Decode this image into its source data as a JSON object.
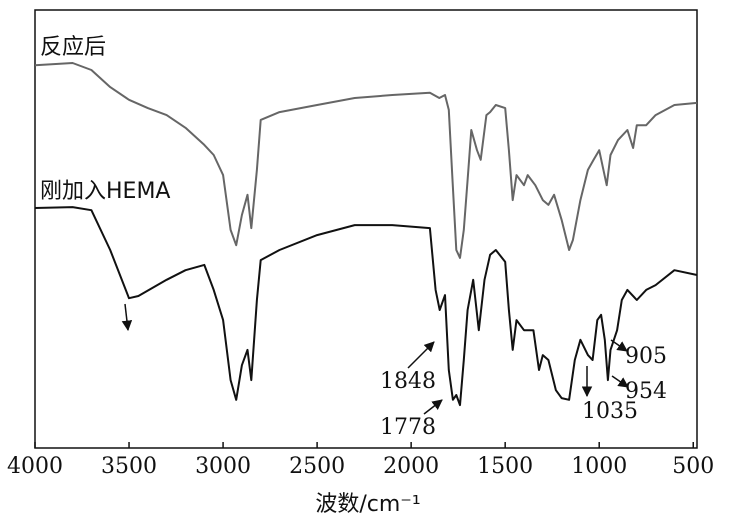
{
  "chart_data": {
    "type": "line",
    "x_label": "波数/cm⁻¹",
    "xlim": [
      4000,
      480
    ],
    "ylim": [
      0,
      100
    ],
    "xticks": [
      4000,
      3500,
      3000,
      2500,
      2000,
      1500,
      1000,
      500
    ],
    "grid": false,
    "series": [
      {
        "name": "反应后",
        "color": "#666666",
        "x": [
          4000,
          3800,
          3700,
          3600,
          3500,
          3400,
          3300,
          3200,
          3100,
          3050,
          3000,
          2960,
          2930,
          2900,
          2870,
          2850,
          2820,
          2800,
          2700,
          2500,
          2300,
          2100,
          1900,
          1850,
          1820,
          1800,
          1780,
          1760,
          1740,
          1720,
          1700,
          1680,
          1650,
          1630,
          1600,
          1580,
          1550,
          1500,
          1480,
          1460,
          1440,
          1400,
          1380,
          1340,
          1300,
          1270,
          1240,
          1200,
          1160,
          1140,
          1100,
          1060,
          1030,
          1000,
          960,
          940,
          900,
          850,
          820,
          800,
          750,
          700,
          600,
          480
        ],
        "values": [
          87.4,
          87.9,
          86.3,
          82.4,
          79.5,
          77.6,
          76.0,
          73.1,
          69.2,
          66.9,
          62.3,
          49.8,
          46.3,
          53.2,
          57.8,
          50.2,
          63.5,
          74.9,
          76.7,
          78.3,
          79.9,
          80.6,
          81.1,
          79.9,
          80.6,
          77.2,
          61.2,
          45.2,
          43.4,
          49.8,
          61.2,
          72.6,
          68.0,
          65.8,
          76.0,
          76.7,
          78.3,
          77.6,
          68.0,
          56.6,
          62.3,
          60.0,
          62.3,
          60.0,
          56.6,
          55.5,
          57.8,
          52.1,
          45.2,
          47.5,
          56.6,
          63.5,
          65.8,
          68.0,
          60.0,
          66.9,
          70.3,
          72.6,
          68.5,
          73.7,
          73.7,
          76.0,
          78.3,
          78.8
        ]
      },
      {
        "name": "刚加入HEMA",
        "color": "#111111",
        "x": [
          4000,
          3800,
          3700,
          3600,
          3500,
          3450,
          3300,
          3200,
          3100,
          3050,
          3000,
          2960,
          2930,
          2900,
          2870,
          2850,
          2820,
          2800,
          2700,
          2500,
          2300,
          2100,
          1900,
          1870,
          1848,
          1820,
          1800,
          1778,
          1760,
          1740,
          1720,
          1700,
          1670,
          1640,
          1610,
          1580,
          1550,
          1500,
          1480,
          1460,
          1440,
          1400,
          1350,
          1320,
          1300,
          1270,
          1230,
          1200,
          1160,
          1130,
          1100,
          1060,
          1035,
          1010,
          990,
          970,
          954,
          940,
          905,
          880,
          850,
          800,
          750,
          700,
          600,
          480
        ],
        "values": [
          54.8,
          55.0,
          54.3,
          45.2,
          34.2,
          34.7,
          38.4,
          40.6,
          41.8,
          36.1,
          29.2,
          15.5,
          11.0,
          18.9,
          22.4,
          15.5,
          33.8,
          42.9,
          45.2,
          48.6,
          50.9,
          50.9,
          50.2,
          36.1,
          31.5,
          34.9,
          17.8,
          11.0,
          12.1,
          9.8,
          20.1,
          31.5,
          38.4,
          26.9,
          38.4,
          44.1,
          45.2,
          42.5,
          31.5,
          22.4,
          29.2,
          26.9,
          26.9,
          17.8,
          21.2,
          20.1,
          13.2,
          11.4,
          11.0,
          20.1,
          24.7,
          21.2,
          20.1,
          29.2,
          30.4,
          24.7,
          15.5,
          22.4,
          26.9,
          33.8,
          36.1,
          33.8,
          36.1,
          37.2,
          40.6,
          39.5
        ]
      }
    ],
    "annotations": [
      "1848",
      "1778",
      "1035",
      "954",
      "905"
    ]
  }
}
